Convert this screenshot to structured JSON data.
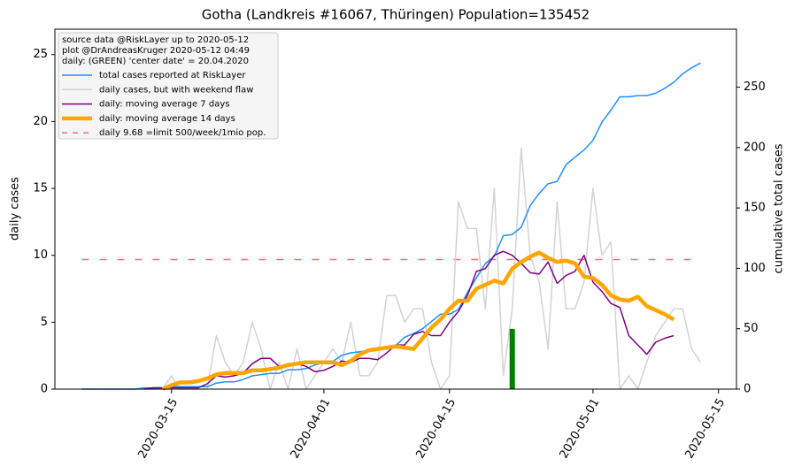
{
  "chart_data": {
    "type": "line",
    "title": "Gotha (Landkreis #16067, Thüringen) Population=135452",
    "ylabel": "daily cases",
    "y2label": "cumulative total cases",
    "ylabel_color": "purple",
    "y2label_color": "#1e90ff",
    "legend_title": [
      "source data @RiskLayer up to 2020-05-12",
      "plot @DrAndreasKruger 2020-05-12 04:49",
      "daily: (GREEN) 'center date' = 20.04.2020"
    ],
    "legend": "upper left",
    "x": [
      "2020-03-05",
      "2020-03-06",
      "2020-03-07",
      "2020-03-08",
      "2020-03-09",
      "2020-03-10",
      "2020-03-11",
      "2020-03-12",
      "2020-03-13",
      "2020-03-14",
      "2020-03-15",
      "2020-03-16",
      "2020-03-17",
      "2020-03-18",
      "2020-03-19",
      "2020-03-20",
      "2020-03-21",
      "2020-03-22",
      "2020-03-23",
      "2020-03-24",
      "2020-03-25",
      "2020-03-26",
      "2020-03-27",
      "2020-03-28",
      "2020-03-29",
      "2020-03-30",
      "2020-03-31",
      "2020-04-01",
      "2020-04-02",
      "2020-04-03",
      "2020-04-04",
      "2020-04-05",
      "2020-04-06",
      "2020-04-07",
      "2020-04-08",
      "2020-04-09",
      "2020-04-10",
      "2020-04-11",
      "2020-04-12",
      "2020-04-13",
      "2020-04-14",
      "2020-04-15",
      "2020-04-16",
      "2020-04-17",
      "2020-04-18",
      "2020-04-19",
      "2020-04-20",
      "2020-04-21",
      "2020-04-22",
      "2020-04-23",
      "2020-04-24",
      "2020-04-25",
      "2020-04-26",
      "2020-04-27",
      "2020-04-28",
      "2020-04-29",
      "2020-04-30",
      "2020-05-01",
      "2020-05-02",
      "2020-05-03",
      "2020-05-04",
      "2020-05-05",
      "2020-05-06",
      "2020-05-07",
      "2020-05-08",
      "2020-05-09",
      "2020-05-10",
      "2020-05-11",
      "2020-05-12",
      "2020-05-13"
    ],
    "series": [
      {
        "name": "total cases reported at RiskLayer",
        "color": "#1e90ff",
        "width": 1.5,
        "axis": "y2",
        "values": [
          0,
          0,
          0,
          0,
          0,
          0,
          0,
          1,
          1,
          1,
          2,
          2,
          2,
          2,
          2,
          5,
          6,
          6,
          8,
          11,
          12,
          13,
          13,
          16,
          16,
          17,
          20,
          22,
          23,
          28,
          30,
          31,
          32,
          34,
          35,
          36,
          43,
          46,
          50,
          56,
          62,
          62,
          66,
          80,
          92,
          104,
          110,
          127,
          128,
          134,
          152,
          162,
          170,
          172,
          186,
          192,
          198,
          206,
          221,
          231,
          242,
          242,
          243,
          243,
          245,
          249,
          254,
          261,
          266,
          270
        ]
      },
      {
        "name": "daily cases, but with weekend flaw",
        "color": "#d3d3d3",
        "width": 1.5,
        "values": [
          0,
          0,
          0,
          0,
          0,
          0,
          0,
          0,
          0,
          0,
          1,
          0,
          0,
          0,
          0,
          4,
          2,
          1,
          2,
          5,
          3,
          0,
          2,
          0,
          3,
          0,
          1,
          2,
          3,
          2,
          5,
          1,
          1,
          2,
          7,
          7,
          5,
          6,
          6,
          2,
          0,
          1,
          14,
          12,
          12,
          6,
          15,
          1,
          6,
          18,
          10,
          8,
          3,
          14,
          6,
          6,
          8,
          15,
          10,
          11,
          0,
          1,
          0,
          2,
          4,
          5,
          6,
          6,
          3,
          2
        ]
      },
      {
        "name": "daily: moving average 7 days",
        "color": "purple",
        "width": 1.5,
        "values": [
          null,
          null,
          null,
          null,
          null,
          null,
          null,
          0,
          0.1,
          0.1,
          0.1,
          0.1,
          0.1,
          0.1,
          0.4,
          1,
          0.9,
          1,
          1.2,
          1.9,
          2.3,
          2.3,
          1.7,
          1.9,
          1.9,
          1.7,
          1.3,
          1.4,
          1.7,
          2.1,
          2.0,
          2.3,
          2.3,
          2.2,
          2.7,
          3.3,
          3.3,
          4.1,
          4.3,
          4,
          4,
          5,
          5.8,
          7,
          8.8,
          9,
          10.0,
          10.3,
          10.0,
          9.4,
          8.7,
          8.6,
          9.5,
          7.9,
          8.5,
          8.8,
          10,
          8,
          7.3,
          6.4,
          6.1,
          4,
          3.3,
          2.6,
          3.5,
          3.8,
          4,
          null,
          null,
          null
        ]
      },
      {
        "name": "daily: moving average 14 days",
        "color": "orange",
        "width": 4.5,
        "values": [
          null,
          null,
          null,
          null,
          null,
          null,
          null,
          null,
          null,
          0,
          0.3,
          0.5,
          0.5,
          0.6,
          0.8,
          1.1,
          1.2,
          1.2,
          1.2,
          1.4,
          1.4,
          1.5,
          1.6,
          1.8,
          1.9,
          2.0,
          2.0,
          2.0,
          2.0,
          1.8,
          2.1,
          2.6,
          2.9,
          3.0,
          3.1,
          3.2,
          3.1,
          3.0,
          3.8,
          4.6,
          5.2,
          6.0,
          6.6,
          6.6,
          7.5,
          7.8,
          8.1,
          7.9,
          9.0,
          9.5,
          9.9,
          10.2,
          9.8,
          9.5,
          9.6,
          9.4,
          8.4,
          8.3,
          7.8,
          7.0,
          6.7,
          6.6,
          6.9,
          6.2,
          5.9,
          5.6,
          5.2,
          null,
          null,
          null
        ]
      }
    ],
    "limit": {
      "name": "daily 9.68 =limit 500/week/1mio pop.",
      "value": 9.68,
      "start": "2020-03-05",
      "end": "2020-05-12",
      "color": "#f07070"
    },
    "marker": {
      "x": "2020-04-22",
      "value": 4.5,
      "color": "green"
    },
    "xlim": [
      "2020-03-02",
      "2020-05-17"
    ],
    "xticks": [
      "2020-03-15",
      "2020-04-01",
      "2020-04-15",
      "2020-05-01",
      "2020-05-15"
    ],
    "ylim": [
      0,
      26.9
    ],
    "yticks": [
      0,
      5,
      10,
      15,
      20,
      25
    ],
    "y2lim": [
      0,
      298
    ],
    "y2ticks": [
      0,
      50,
      100,
      150,
      200,
      250
    ]
  }
}
